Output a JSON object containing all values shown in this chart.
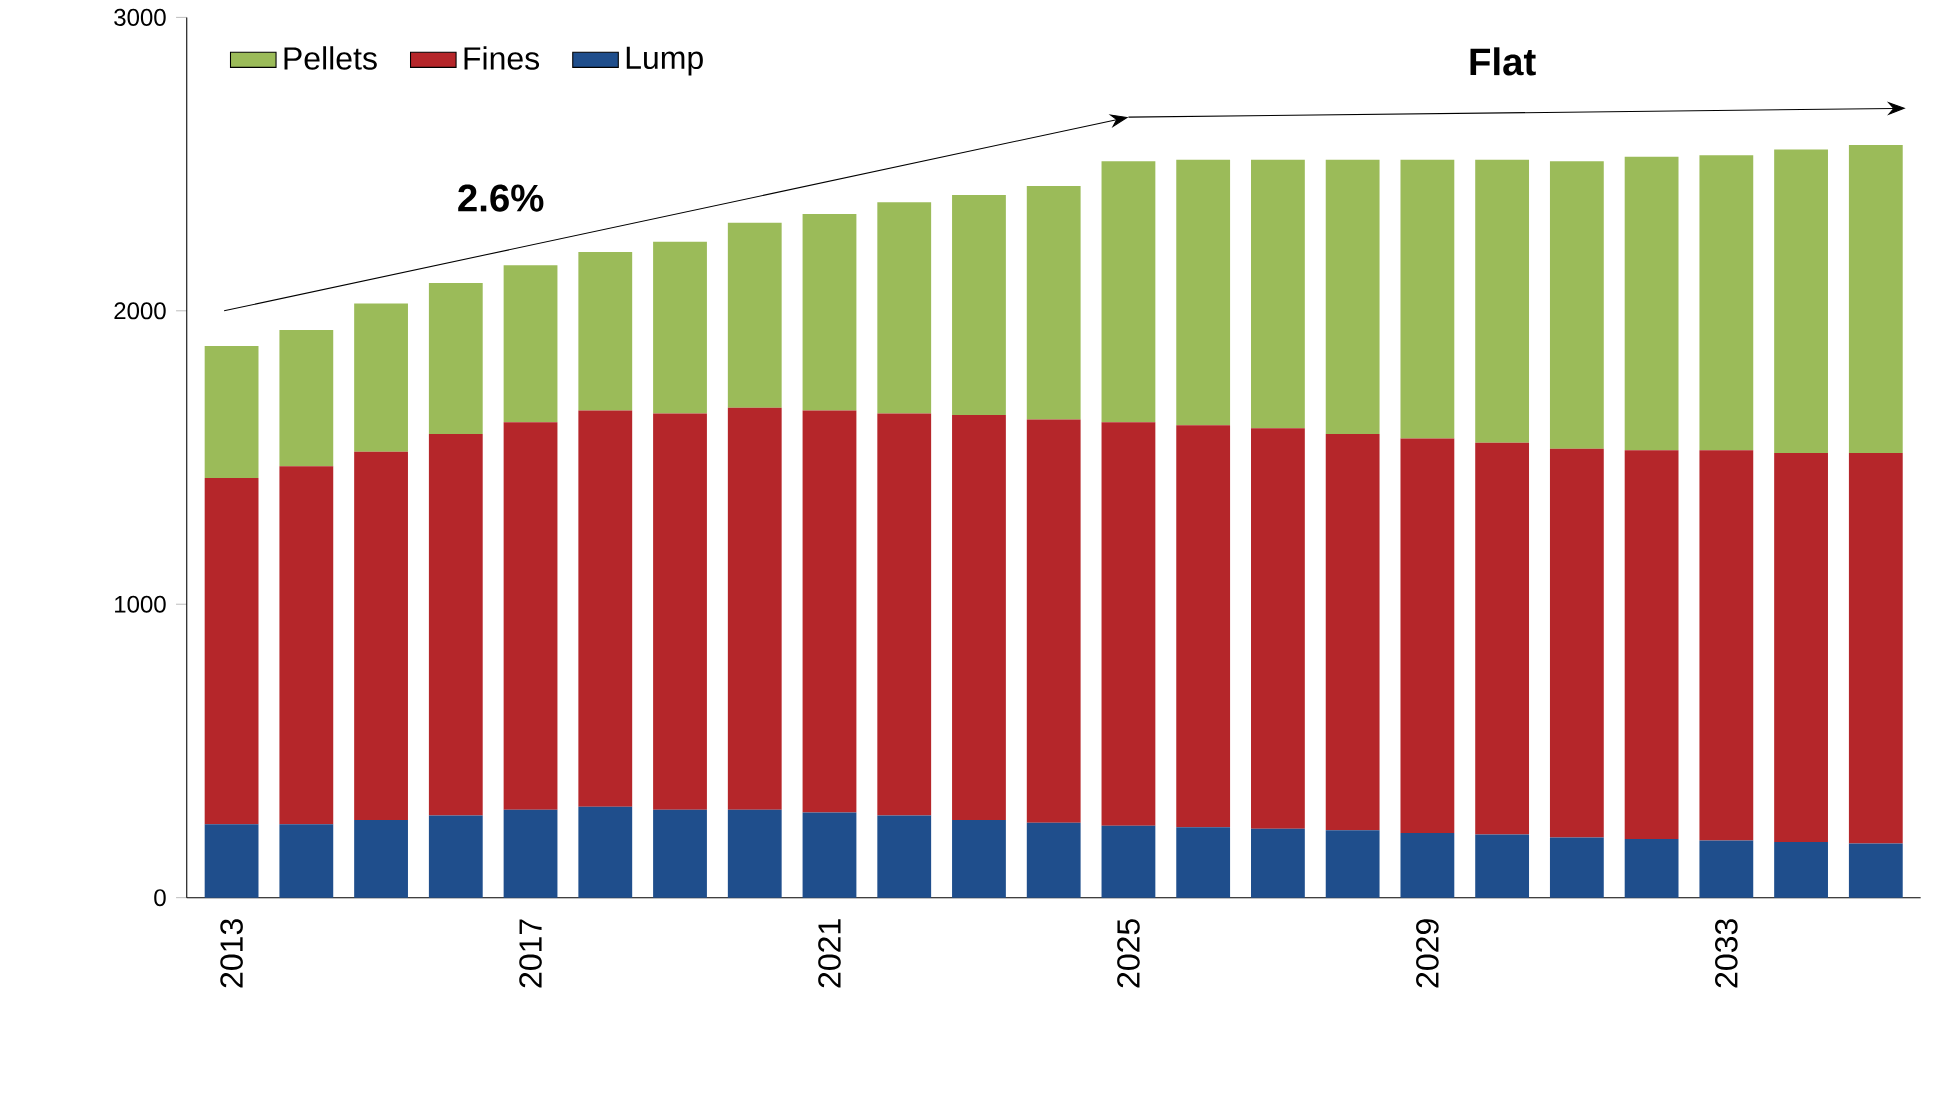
{
  "chart_data": {
    "type": "bar",
    "stacked": true,
    "legend": "top left",
    "grid": false,
    "categories": [
      "2013",
      null,
      null,
      null,
      "2017",
      null,
      null,
      null,
      "2021",
      null,
      null,
      null,
      "2025",
      null,
      null,
      null,
      "2029",
      null,
      null,
      null,
      "2033",
      null,
      null
    ],
    "ylim": [
      0,
      3000
    ],
    "yticks": [
      0,
      1000,
      2000,
      3000
    ],
    "series": [
      {
        "name": "Lump",
        "color": "#1f4e8c",
        "values": [
          250,
          250,
          265,
          280,
          300,
          310,
          300,
          300,
          290,
          280,
          265,
          255,
          245,
          240,
          235,
          230,
          220,
          215,
          205,
          200,
          195,
          190,
          185
        ]
      },
      {
        "name": "Fines",
        "color": "#b5262a",
        "values": [
          1180,
          1220,
          1255,
          1300,
          1320,
          1350,
          1350,
          1370,
          1370,
          1370,
          1380,
          1375,
          1375,
          1370,
          1365,
          1350,
          1345,
          1335,
          1325,
          1325,
          1330,
          1325,
          1330
        ]
      },
      {
        "name": "Pellets",
        "color": "#9bbb59",
        "values": [
          450,
          465,
          505,
          515,
          535,
          540,
          585,
          630,
          670,
          720,
          750,
          795,
          890,
          905,
          915,
          935,
          950,
          965,
          980,
          1000,
          1005,
          1035,
          1050
        ]
      }
    ],
    "annotations": [
      "2.6%",
      "Flat"
    ]
  }
}
